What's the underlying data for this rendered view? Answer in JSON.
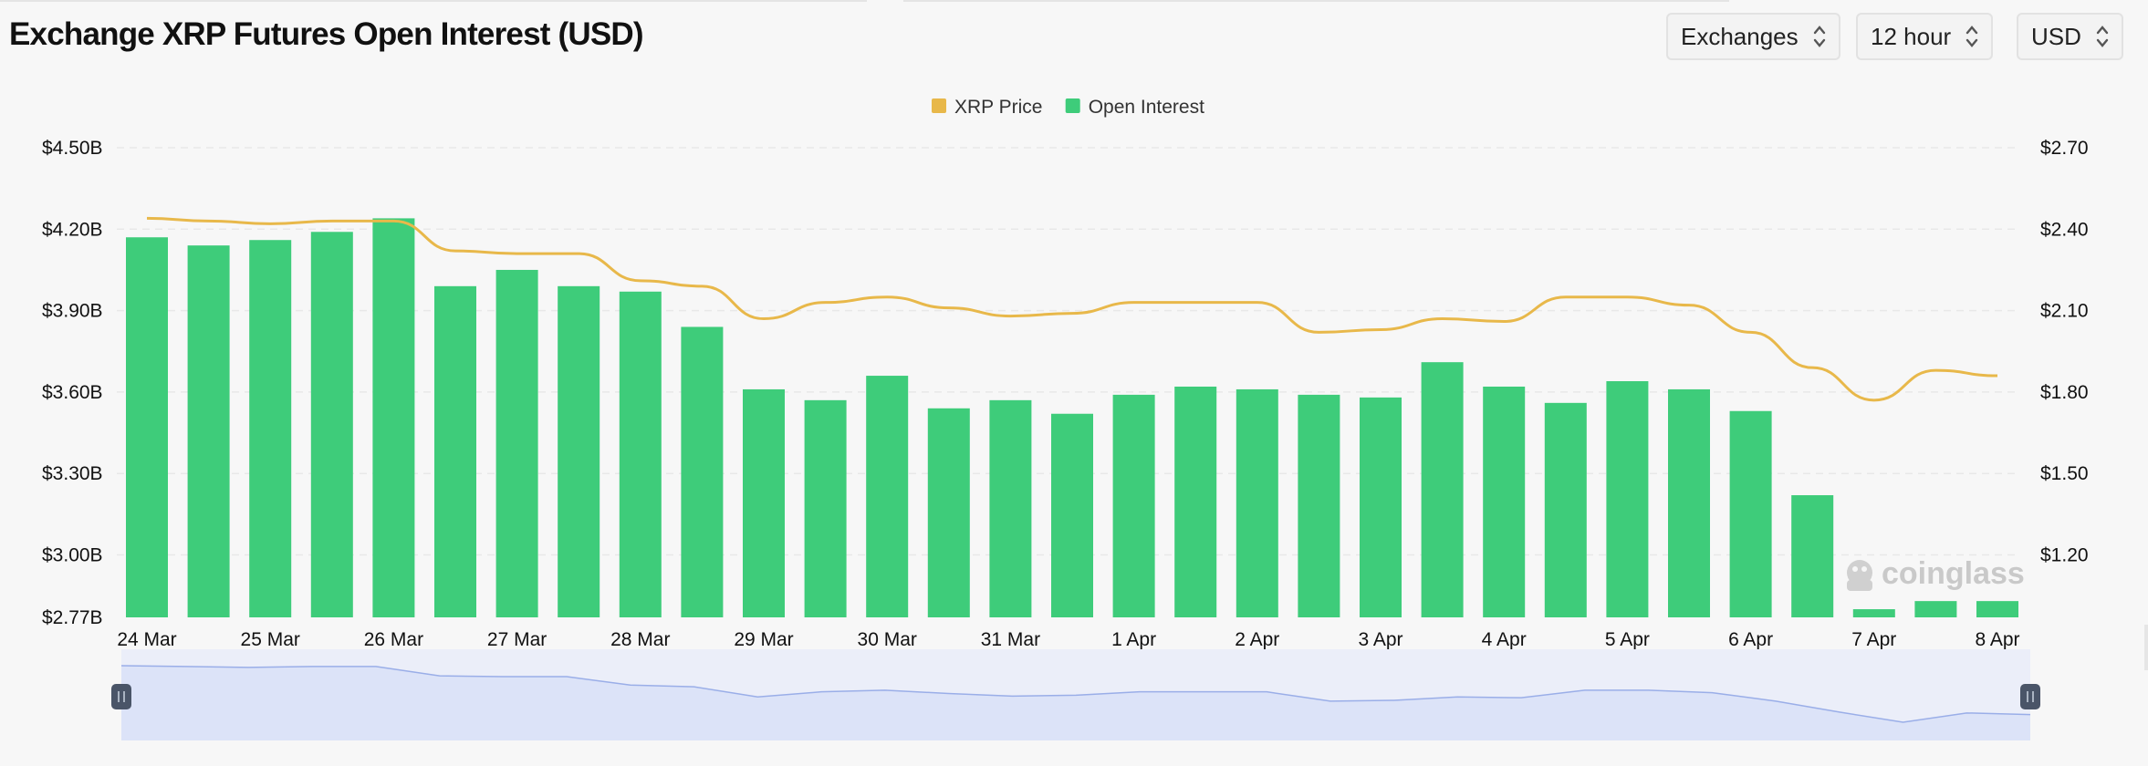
{
  "header": {
    "title": "Exchange XRP Futures Open Interest (USD)",
    "selectors": [
      {
        "label": "Exchanges"
      },
      {
        "label": "12 hour"
      },
      {
        "label": "USD"
      }
    ]
  },
  "watermark": "coinglass",
  "colors": {
    "price": "#e8b84a",
    "open_interest": "#3ecc7a",
    "navigator_fill": "#dce3f8",
    "navigator_line": "#9aaee8"
  },
  "chart_data": {
    "type": "bar",
    "title": "Exchange XRP Futures Open Interest (USD)",
    "legend": [
      "XRP Price",
      "Open Interest"
    ],
    "legend_position": "top-center",
    "grid": true,
    "x_tick_labels": [
      "24 Mar",
      "25 Mar",
      "26 Mar",
      "27 Mar",
      "28 Mar",
      "29 Mar",
      "30 Mar",
      "31 Mar",
      "1 Apr",
      "2 Apr",
      "3 Apr",
      "4 Apr",
      "5 Apr",
      "6 Apr",
      "7 Apr",
      "8 Apr"
    ],
    "left_axis": {
      "ticks": [
        "$4.50B",
        "$4.20B",
        "$3.90B",
        "$3.60B",
        "$3.30B",
        "$3.00B",
        "$2.77B"
      ],
      "tick_values": [
        4.5,
        4.2,
        3.9,
        3.6,
        3.3,
        3.0,
        2.77
      ],
      "range": [
        2.77,
        4.5
      ],
      "unit": "B USD"
    },
    "right_axis": {
      "ticks": [
        "$2.70",
        "$2.40",
        "$2.10",
        "$1.80",
        "$1.50",
        "$1.20"
      ],
      "tick_values": [
        2.7,
        2.4,
        2.1,
        1.8,
        1.5,
        1.2
      ],
      "range": [
        0.97,
        2.7
      ],
      "unit": "USD"
    },
    "series": [
      {
        "name": "Open Interest",
        "type": "bar",
        "axis": "left",
        "values": [
          4.17,
          4.14,
          4.16,
          4.19,
          4.24,
          3.99,
          4.05,
          3.99,
          3.97,
          3.84,
          3.61,
          3.57,
          3.66,
          3.54,
          3.57,
          3.52,
          3.59,
          3.62,
          3.61,
          3.59,
          3.58,
          3.71,
          3.62,
          3.56,
          3.64,
          3.61,
          3.53,
          3.22,
          2.8,
          2.83,
          2.83
        ]
      },
      {
        "name": "XRP Price",
        "type": "line",
        "axis": "right",
        "values": [
          2.44,
          2.43,
          2.42,
          2.43,
          2.43,
          2.32,
          2.31,
          2.31,
          2.21,
          2.19,
          2.07,
          2.13,
          2.15,
          2.11,
          2.08,
          2.09,
          2.13,
          2.13,
          2.13,
          2.02,
          2.03,
          2.07,
          2.06,
          2.15,
          2.15,
          2.12,
          2.02,
          1.89,
          1.77,
          1.88,
          1.86
        ]
      }
    ]
  }
}
